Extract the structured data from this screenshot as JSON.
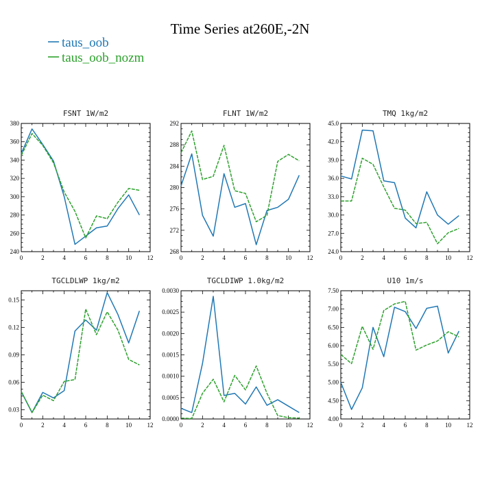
{
  "figure": {
    "title": "Time Series at260E,-2N",
    "legend": [
      {
        "label": "taus_oob",
        "color": "#1f77b4",
        "dash": "solid"
      },
      {
        "label": "taus_oob_nozm",
        "color": "#2ca02c",
        "dash": "dashed"
      }
    ]
  },
  "chart_data": [
    {
      "type": "line",
      "title": "FSNT   1W/m2",
      "x": [
        0,
        1,
        2,
        3,
        4,
        5,
        6,
        7,
        8,
        9,
        10,
        11
      ],
      "xlim": [
        0,
        12
      ],
      "xticks": [
        0,
        2,
        4,
        6,
        8,
        10,
        12
      ],
      "xtick_labels": [
        "0",
        "2",
        "4",
        "6",
        "8",
        "10",
        "12"
      ],
      "ylim": [
        240,
        380
      ],
      "yticks": [
        240,
        260,
        280,
        300,
        320,
        340,
        360,
        380
      ],
      "ytick_labels": [
        "240",
        "260",
        "280",
        "300",
        "320",
        "340",
        "360",
        "380"
      ],
      "series": [
        {
          "name": "taus_oob",
          "color": "#1f77b4",
          "values": [
            347,
            374,
            357,
            339,
            300,
            248,
            257,
            266,
            268,
            287,
            302,
            280
          ]
        },
        {
          "name": "taus_oob_nozm",
          "color": "#2ca02c",
          "values": [
            345,
            369,
            356,
            337,
            305,
            284,
            255,
            279,
            276,
            294,
            309,
            307
          ]
        }
      ]
    },
    {
      "type": "line",
      "title": "FLNT   1W/m2",
      "x": [
        0,
        1,
        2,
        3,
        4,
        5,
        6,
        7,
        8,
        9,
        10,
        11
      ],
      "xlim": [
        0,
        12
      ],
      "xticks": [
        0,
        2,
        4,
        6,
        8,
        10,
        12
      ],
      "xtick_labels": [
        "0",
        "2",
        "4",
        "6",
        "8",
        "10",
        "12"
      ],
      "ylim": [
        268,
        292
      ],
      "yticks": [
        268,
        272,
        276,
        280,
        284,
        288,
        292
      ],
      "ytick_labels": [
        "268",
        "272",
        "276",
        "280",
        "284",
        "288",
        "292"
      ],
      "series": [
        {
          "name": "taus_oob",
          "color": "#1f77b4",
          "values": [
            280.3,
            286.3,
            274.8,
            270.9,
            282.6,
            276.3,
            277.0,
            269.3,
            275.7,
            276.3,
            277.8,
            282.3
          ]
        },
        {
          "name": "taus_oob_nozm",
          "color": "#2ca02c",
          "values": [
            286.5,
            290.6,
            281.5,
            282.1,
            287.9,
            279.4,
            278.9,
            273.6,
            274.8,
            284.9,
            286.2,
            285.0
          ]
        }
      ]
    },
    {
      "type": "line",
      "title": "TMQ   1kg/m2",
      "x": [
        0,
        1,
        2,
        3,
        4,
        5,
        6,
        7,
        8,
        9,
        10,
        11
      ],
      "xlim": [
        0,
        12
      ],
      "xticks": [
        0,
        2,
        4,
        6,
        8,
        10,
        12
      ],
      "xtick_labels": [
        "0",
        "2",
        "4",
        "6",
        "8",
        "10",
        "12"
      ],
      "ylim": [
        24,
        45
      ],
      "yticks": [
        24,
        27,
        30,
        33,
        36,
        39,
        42,
        45
      ],
      "ytick_labels": [
        "24.0",
        "27.0",
        "30.0",
        "33.0",
        "36.0",
        "39.0",
        "42.0",
        "45.0"
      ],
      "series": [
        {
          "name": "taus_oob",
          "color": "#1f77b4",
          "values": [
            36.4,
            35.9,
            43.9,
            43.8,
            35.6,
            35.3,
            29.5,
            27.9,
            33.8,
            30.0,
            28.5,
            29.9
          ]
        },
        {
          "name": "taus_oob_nozm",
          "color": "#2ca02c",
          "values": [
            32.3,
            32.3,
            39.3,
            38.3,
            34.6,
            31.1,
            30.8,
            28.6,
            28.8,
            25.3,
            27.1,
            27.8
          ]
        }
      ]
    },
    {
      "type": "line",
      "title": "TGCLDLWP   1kg/m2",
      "x": [
        0,
        1,
        2,
        3,
        4,
        5,
        6,
        7,
        8,
        9,
        10,
        11
      ],
      "xlim": [
        0,
        12
      ],
      "xticks": [
        0,
        2,
        4,
        6,
        8,
        10,
        12
      ],
      "xtick_labels": [
        "0",
        "2",
        "4",
        "6",
        "8",
        "10",
        "12"
      ],
      "ylim": [
        0.02,
        0.16
      ],
      "yticks": [
        0.03,
        0.06,
        0.09,
        0.12,
        0.15
      ],
      "ytick_labels": [
        "0.03",
        "0.06",
        "0.09",
        "0.12",
        "0.15"
      ],
      "series": [
        {
          "name": "taus_oob",
          "color": "#1f77b4",
          "values": [
            0.05,
            0.027,
            0.049,
            0.043,
            0.051,
            0.116,
            0.128,
            0.117,
            0.158,
            0.134,
            0.103,
            0.138
          ]
        },
        {
          "name": "taus_oob_nozm",
          "color": "#2ca02c",
          "values": [
            0.05,
            0.027,
            0.046,
            0.04,
            0.061,
            0.063,
            0.14,
            0.112,
            0.137,
            0.117,
            0.085,
            0.079
          ]
        }
      ]
    },
    {
      "type": "line",
      "title": "TGCLDIWP   1.0kg/m2",
      "x": [
        0,
        1,
        2,
        3,
        4,
        5,
        6,
        7,
        8,
        9,
        10,
        11
      ],
      "xlim": [
        0,
        12
      ],
      "xticks": [
        0,
        2,
        4,
        6,
        8,
        10,
        12
      ],
      "xtick_labels": [
        "0",
        "2",
        "4",
        "6",
        "8",
        "10",
        "12"
      ],
      "ylim": [
        0,
        0.003
      ],
      "yticks": [
        0,
        0.0005,
        0.001,
        0.0015,
        0.002,
        0.0025,
        0.003
      ],
      "ytick_labels": [
        "0.0000",
        "0.0005",
        "0.0010",
        "0.0015",
        "0.0020",
        "0.0025",
        "0.0030"
      ],
      "series": [
        {
          "name": "taus_oob",
          "color": "#1f77b4",
          "values": [
            0.00025,
            0.00015,
            0.0013,
            0.00287,
            0.00055,
            0.0006,
            0.00035,
            0.00075,
            0.00032,
            0.00045,
            0.0003,
            0.00015
          ]
        },
        {
          "name": "taus_oob_nozm",
          "color": "#2ca02c",
          "values": [
            2e-05,
            1e-05,
            0.0006,
            0.00093,
            0.0004,
            0.00102,
            0.00068,
            0.00124,
            0.0006,
            8e-05,
            3e-05,
            2e-05
          ]
        }
      ]
    },
    {
      "type": "line",
      "title": "U10   1m/s",
      "x": [
        0,
        1,
        2,
        3,
        4,
        5,
        6,
        7,
        8,
        9,
        10,
        11
      ],
      "xlim": [
        0,
        12
      ],
      "xticks": [
        0,
        2,
        4,
        6,
        8,
        10,
        12
      ],
      "xtick_labels": [
        "0",
        "2",
        "4",
        "6",
        "8",
        "10",
        "12"
      ],
      "ylim": [
        4,
        7.5
      ],
      "yticks": [
        4,
        4.5,
        5,
        5.5,
        6,
        6.5,
        7,
        7.5
      ],
      "ytick_labels": [
        "4.00",
        "4.50",
        "5.00",
        "5.50",
        "6.00",
        "6.50",
        "7.00",
        "7.50"
      ],
      "series": [
        {
          "name": "taus_oob",
          "color": "#1f77b4",
          "values": [
            5.0,
            4.26,
            4.85,
            6.5,
            5.7,
            7.05,
            6.93,
            6.47,
            7.02,
            7.08,
            5.8,
            6.4
          ]
        },
        {
          "name": "taus_oob_nozm",
          "color": "#2ca02c",
          "values": [
            5.76,
            5.51,
            6.53,
            5.9,
            6.96,
            7.14,
            7.21,
            5.88,
            6.02,
            6.13,
            6.38,
            6.24
          ]
        }
      ]
    }
  ]
}
